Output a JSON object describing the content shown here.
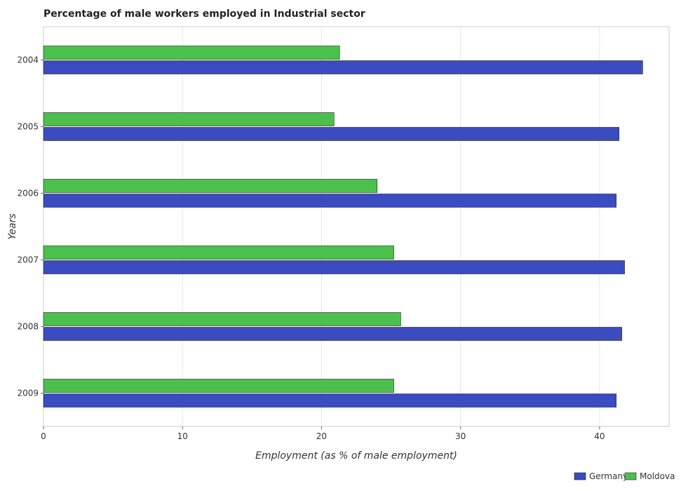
{
  "chart_data": {
    "type": "bar",
    "orientation": "horizontal",
    "title": "Percentage of male workers employed in Industrial sector",
    "xlabel": "Employment (as % of male employment)",
    "ylabel": "Years",
    "categories": [
      "2004",
      "2005",
      "2006",
      "2007",
      "2008",
      "2009"
    ],
    "series": [
      {
        "name": "Germany",
        "color": "#3b4cc0",
        "values": [
          43.1,
          41.4,
          41.2,
          41.8,
          41.6,
          41.2
        ]
      },
      {
        "name": "Moldova",
        "color": "#4cc04c",
        "values": [
          21.3,
          20.9,
          24.0,
          25.2,
          25.7,
          25.2
        ]
      }
    ],
    "xlim": [
      0,
      45
    ],
    "xticks": [
      0,
      10,
      20,
      30,
      40
    ],
    "grid": true,
    "legend_position": "bottom-right"
  }
}
